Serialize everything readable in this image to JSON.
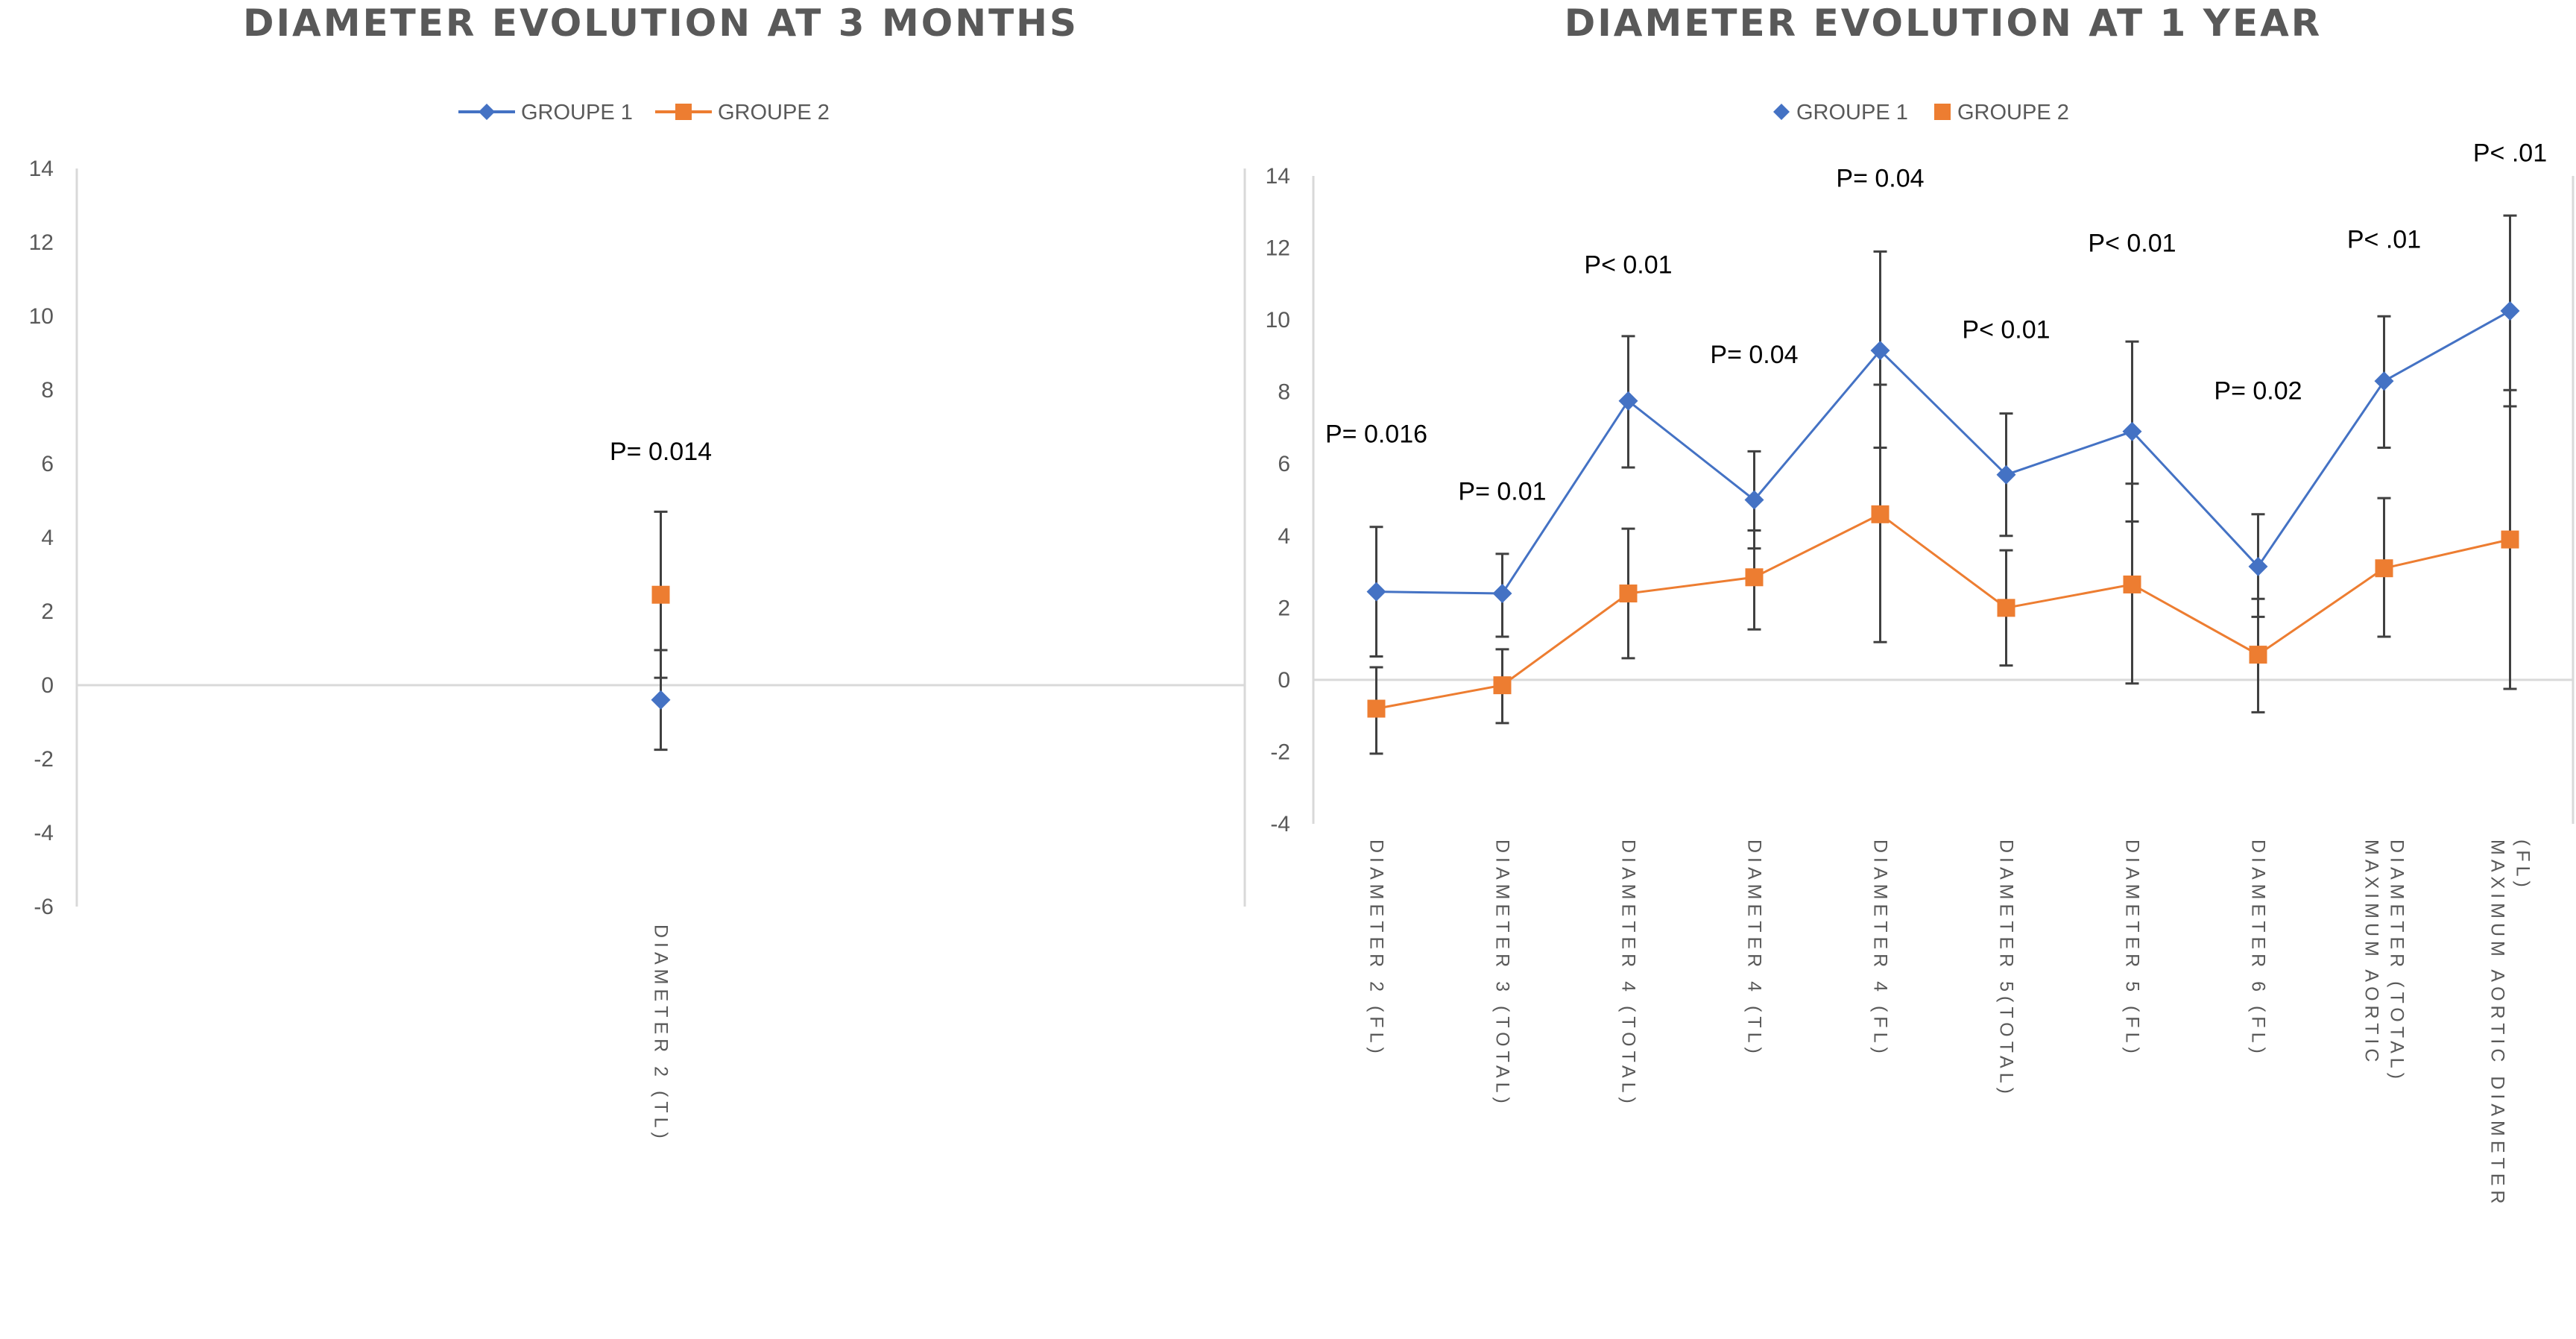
{
  "colors": {
    "group1": "#4472C4",
    "group2": "#ED7D31",
    "title": "#595959",
    "axis": "#D9D9D9",
    "error_bar": "#404040",
    "pvalue": "#000000"
  },
  "chart_data": [
    {
      "type": "line",
      "title": "DIAMETER EVOLUTION AT 3 MONTHS",
      "legend_style": "line",
      "legend_position": "top",
      "ylim": [
        -6,
        14
      ],
      "y_ticks": [
        "14",
        "12",
        "10",
        "8",
        "6",
        "4",
        "2",
        "0",
        "-2",
        "-4",
        "-6"
      ],
      "categories": [
        "DIAMETER 2 (TL)"
      ],
      "series": [
        {
          "name": "GROUPE 1",
          "color": "#4472C4",
          "marker": "diamond",
          "values": [
            -0.4
          ],
          "error_low": [
            -1.75
          ],
          "error_high": [
            0.95
          ]
        },
        {
          "name": "GROUPE 2",
          "color": "#ED7D31",
          "marker": "square",
          "values": [
            2.45
          ],
          "error_low": [
            0.2
          ],
          "error_high": [
            4.7
          ]
        }
      ],
      "annotations": [
        {
          "text": "P= 0.014",
          "category_index": 0,
          "y": 6.1
        }
      ]
    },
    {
      "type": "line",
      "title": "DIAMETER EVOLUTION AT 1 YEAR",
      "legend_style": "marker",
      "legend_position": "top",
      "ylim": [
        -4,
        14
      ],
      "y_ticks": [
        "14",
        "12",
        "10",
        "8",
        "6",
        "4",
        "2",
        "0",
        "-2",
        "-4"
      ],
      "categories": [
        "DIAMETER 2 (FL)",
        "DIAMETER 3 (TOTAL)",
        "DIAMETER 4 (TOTAL)",
        "DIAMETER 4 (TL)",
        "DIAMETER 4 (FL)",
        "DIAMETER 5(TOTAL)",
        "DIAMETER 5 (FL)",
        "DIAMETER 6 (FL)",
        [
          "MAXIMUM AORTIC",
          "DIAMETER (TOTAL)"
        ],
        [
          "MAXIMUM AORTIC DIAMETER",
          "(FL)"
        ]
      ],
      "series": [
        {
          "name": "GROUPE 1",
          "color": "#4472C4",
          "marker": "diamond",
          "values": [
            2.45,
            2.4,
            7.75,
            5.0,
            9.15,
            5.7,
            6.9,
            3.15,
            8.3,
            10.25
          ],
          "error_low": [
            0.65,
            1.2,
            5.9,
            3.65,
            6.45,
            4.0,
            4.4,
            1.75,
            6.45,
            7.6
          ],
          "error_high": [
            4.25,
            3.5,
            9.55,
            6.35,
            11.9,
            7.4,
            9.4,
            4.6,
            10.1,
            12.9
          ]
        },
        {
          "name": "GROUPE 2",
          "color": "#ED7D31",
          "marker": "square",
          "values": [
            -0.8,
            -0.15,
            2.4,
            2.85,
            4.6,
            2.0,
            2.65,
            0.7,
            3.1,
            3.9
          ],
          "error_low": [
            -2.05,
            -1.2,
            0.6,
            1.4,
            1.05,
            0.4,
            -0.1,
            -0.9,
            1.2,
            -0.25
          ],
          "error_high": [
            0.35,
            0.85,
            4.2,
            4.15,
            8.2,
            3.6,
            5.45,
            2.25,
            5.05,
            8.05
          ]
        }
      ],
      "annotations": [
        {
          "text": "P= 0.016",
          "category_index": 0,
          "y": 6.6
        },
        {
          "text": "P= 0.01",
          "category_index": 1,
          "y": 5.0
        },
        {
          "text": "P< 0.01",
          "category_index": 2,
          "y": 11.3
        },
        {
          "text": "P= 0.04",
          "category_index": 3,
          "y": 8.8
        },
        {
          "text": "P= 0.04",
          "category_index": 4,
          "y": 13.7
        },
        {
          "text": "P< 0.01",
          "category_index": 5,
          "y": 9.5
        },
        {
          "text": "P< 0.01",
          "category_index": 6,
          "y": 11.9
        },
        {
          "text": "P= 0.02",
          "category_index": 7,
          "y": 7.8
        },
        {
          "text": "P< .01",
          "category_index": 8,
          "y": 12.0
        },
        {
          "text": "P< .01",
          "category_index": 9,
          "y": 14.4
        }
      ]
    }
  ]
}
